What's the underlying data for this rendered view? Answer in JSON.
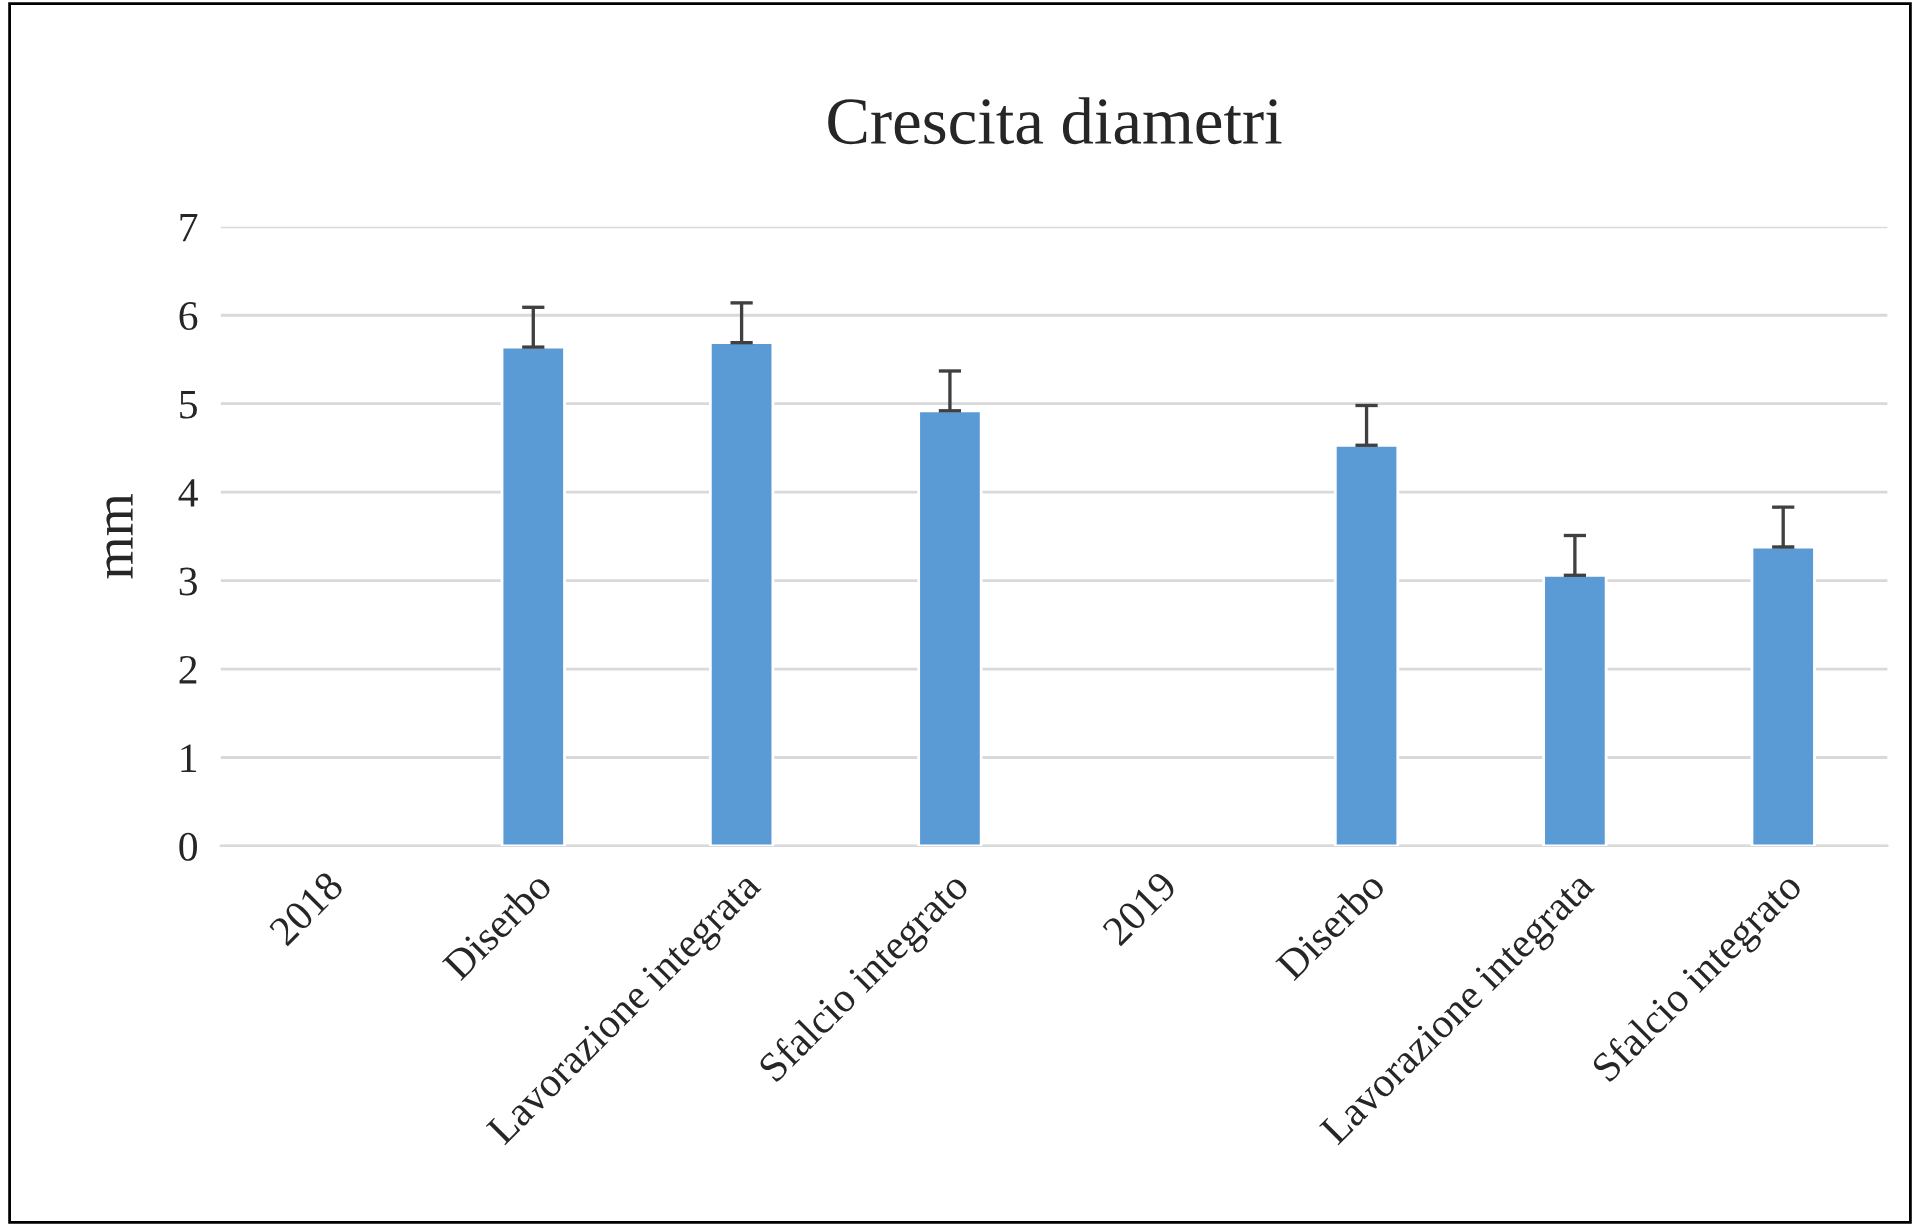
{
  "chart_data": {
    "type": "bar",
    "title": "Crescita diametri",
    "ylabel": "mm",
    "categories": [
      "2018",
      "Diserbo",
      "Lavorazione integrata",
      "Sfalcio integrato",
      "2019",
      "Diserbo",
      "Lavorazione integrata",
      "Sfalcio integrato"
    ],
    "values": [
      null,
      5.64,
      5.69,
      4.92,
      null,
      4.53,
      3.06,
      3.38
    ],
    "errors": [
      null,
      [
        5.64,
        6.09
      ],
      [
        5.69,
        6.14
      ],
      [
        4.92,
        5.37
      ],
      null,
      [
        4.53,
        4.98
      ],
      [
        3.06,
        3.51
      ],
      [
        3.38,
        3.83
      ]
    ],
    "color": "#5b9bd5",
    "ylim": [
      0,
      7
    ],
    "yticks": [
      0,
      1,
      2,
      3,
      4,
      5,
      6,
      7
    ],
    "grid": "y"
  }
}
